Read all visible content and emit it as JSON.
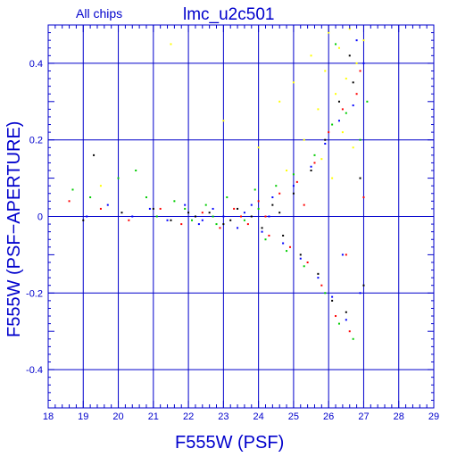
{
  "chart_data": {
    "type": "scatter",
    "chip_label": "All chips",
    "title": "lmc_u2c501",
    "xlabel": "F555W (PSF)",
    "ylabel": "F555W (PSF−APERTURE)",
    "xlim": [
      18,
      29
    ],
    "ylim": [
      -0.5,
      0.5
    ],
    "x_ticks": [
      "18",
      "19",
      "20",
      "21",
      "22",
      "23",
      "24",
      "25",
      "26",
      "27",
      "28",
      "29"
    ],
    "y_ticks": [
      "0.4",
      "0.2",
      "0",
      "-0.2",
      "-0.4"
    ],
    "grid": true,
    "series_colors": [
      "#000000",
      "#ff0000",
      "#00cc00",
      "#0000ff",
      "#ffff00"
    ],
    "series": [
      {
        "color": "#000000",
        "points": [
          [
            19.0,
            -0.01
          ],
          [
            19.3,
            0.16
          ],
          [
            20.1,
            0.01
          ],
          [
            21.0,
            0.02
          ],
          [
            21.5,
            -0.01
          ],
          [
            22.2,
            0.0
          ],
          [
            22.6,
            0.01
          ],
          [
            23.0,
            -0.02
          ],
          [
            23.4,
            0.02
          ],
          [
            23.8,
            0.0
          ],
          [
            24.1,
            -0.03
          ],
          [
            24.4,
            0.03
          ],
          [
            24.7,
            -0.05
          ],
          [
            25.0,
            0.06
          ],
          [
            25.2,
            -0.1
          ],
          [
            25.5,
            0.12
          ],
          [
            25.7,
            -0.15
          ],
          [
            25.9,
            0.2
          ],
          [
            26.1,
            -0.22
          ],
          [
            26.3,
            0.3
          ],
          [
            26.5,
            -0.25
          ],
          [
            26.7,
            0.35
          ],
          [
            26.9,
            0.1
          ],
          [
            27.0,
            -0.18
          ],
          [
            26.6,
            0.42
          ],
          [
            24.6,
            0.01
          ],
          [
            23.2,
            -0.01
          ],
          [
            22.0,
            0.01
          ]
        ]
      },
      {
        "color": "#ff0000",
        "points": [
          [
            18.6,
            0.04
          ],
          [
            19.5,
            0.02
          ],
          [
            20.3,
            -0.01
          ],
          [
            21.2,
            0.02
          ],
          [
            21.8,
            -0.02
          ],
          [
            22.4,
            0.01
          ],
          [
            22.9,
            -0.03
          ],
          [
            23.3,
            0.02
          ],
          [
            23.7,
            -0.02
          ],
          [
            24.0,
            0.04
          ],
          [
            24.3,
            -0.05
          ],
          [
            24.6,
            0.06
          ],
          [
            24.9,
            -0.08
          ],
          [
            25.1,
            0.09
          ],
          [
            25.4,
            -0.12
          ],
          [
            25.6,
            0.14
          ],
          [
            25.8,
            -0.18
          ],
          [
            26.0,
            0.22
          ],
          [
            26.2,
            -0.26
          ],
          [
            26.4,
            0.28
          ],
          [
            26.6,
            -0.3
          ],
          [
            26.8,
            0.32
          ],
          [
            27.0,
            0.05
          ],
          [
            26.5,
            -0.1
          ],
          [
            26.9,
            0.38
          ],
          [
            25.3,
            0.03
          ],
          [
            24.2,
            0.0
          ],
          [
            23.5,
            0.0
          ]
        ]
      },
      {
        "color": "#00cc00",
        "points": [
          [
            18.7,
            0.07
          ],
          [
            19.2,
            0.05
          ],
          [
            20.0,
            0.1
          ],
          [
            20.5,
            0.12
          ],
          [
            20.8,
            0.05
          ],
          [
            21.1,
            0.0
          ],
          [
            21.6,
            0.04
          ],
          [
            22.1,
            -0.01
          ],
          [
            22.5,
            0.03
          ],
          [
            22.8,
            -0.02
          ],
          [
            23.1,
            0.05
          ],
          [
            23.6,
            -0.01
          ],
          [
            23.9,
            0.07
          ],
          [
            24.2,
            -0.06
          ],
          [
            24.5,
            0.08
          ],
          [
            24.8,
            -0.09
          ],
          [
            25.0,
            0.11
          ],
          [
            25.3,
            -0.13
          ],
          [
            25.6,
            0.16
          ],
          [
            25.9,
            -0.2
          ],
          [
            26.1,
            0.24
          ],
          [
            26.3,
            -0.28
          ],
          [
            26.5,
            0.27
          ],
          [
            26.7,
            -0.32
          ],
          [
            26.9,
            0.2
          ],
          [
            27.1,
            0.3
          ],
          [
            26.2,
            0.45
          ],
          [
            24.0,
            0.02
          ],
          [
            22.7,
            0.0
          ],
          [
            21.9,
            0.02
          ]
        ]
      },
      {
        "color": "#0000ff",
        "points": [
          [
            19.1,
            0.0
          ],
          [
            19.7,
            0.03
          ],
          [
            20.4,
            0.0
          ],
          [
            20.9,
            0.02
          ],
          [
            21.4,
            -0.01
          ],
          [
            21.9,
            0.03
          ],
          [
            22.3,
            -0.02
          ],
          [
            22.7,
            0.02
          ],
          [
            23.0,
            0.0
          ],
          [
            23.4,
            -0.03
          ],
          [
            23.8,
            0.03
          ],
          [
            24.1,
            -0.04
          ],
          [
            24.4,
            0.05
          ],
          [
            24.7,
            -0.07
          ],
          [
            25.0,
            0.08
          ],
          [
            25.2,
            -0.11
          ],
          [
            25.5,
            0.13
          ],
          [
            25.7,
            -0.16
          ],
          [
            25.9,
            0.19
          ],
          [
            26.1,
            -0.21
          ],
          [
            26.3,
            0.25
          ],
          [
            26.5,
            -0.27
          ],
          [
            26.7,
            0.29
          ],
          [
            26.9,
            -0.2
          ],
          [
            27.0,
            0.4
          ],
          [
            26.8,
            0.46
          ],
          [
            26.4,
            -0.1
          ],
          [
            24.3,
            0.0
          ],
          [
            23.6,
            0.01
          ],
          [
            22.4,
            -0.01
          ]
        ]
      },
      {
        "color": "#ffff00",
        "points": [
          [
            19.5,
            0.08
          ],
          [
            21.5,
            0.45
          ],
          [
            23.0,
            0.25
          ],
          [
            24.0,
            0.18
          ],
          [
            24.6,
            0.3
          ],
          [
            25.0,
            0.35
          ],
          [
            25.3,
            0.2
          ],
          [
            25.5,
            0.42
          ],
          [
            25.7,
            0.28
          ],
          [
            25.9,
            0.38
          ],
          [
            26.0,
            0.48
          ],
          [
            26.2,
            0.32
          ],
          [
            26.3,
            0.44
          ],
          [
            26.5,
            0.36
          ],
          [
            26.6,
            0.49
          ],
          [
            26.8,
            0.4
          ],
          [
            27.0,
            0.46
          ],
          [
            26.4,
            0.22
          ],
          [
            25.8,
            0.15
          ],
          [
            26.1,
            0.1
          ],
          [
            26.7,
            0.18
          ],
          [
            24.8,
            0.12
          ]
        ]
      }
    ]
  }
}
